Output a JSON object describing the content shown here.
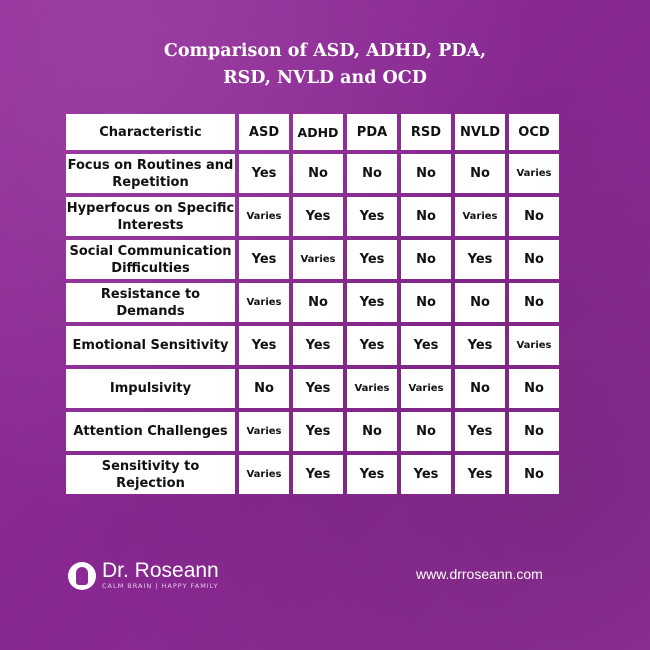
{
  "title_lines": [
    "Comparison of ASD, ADHD, PDA,",
    "RSD, NVLD and OCD"
  ],
  "table": {
    "corner": "Characteristic",
    "columns": [
      "ASD",
      "ADHD",
      "PDA",
      "RSD",
      "NVLD",
      "OCD"
    ],
    "rows": [
      {
        "label": "Focus on Routines and Repetition",
        "values": [
          "Yes",
          "No",
          "No",
          "No",
          "No",
          "Varies"
        ]
      },
      {
        "label": "Hyperfocus on Specific Interests",
        "values": [
          "Varies",
          "Yes",
          "Yes",
          "No",
          "Varies",
          "No"
        ]
      },
      {
        "label": "Social Communication Difficulties",
        "values": [
          "Yes",
          "Varies",
          "Yes",
          "No",
          "Yes",
          "No"
        ]
      },
      {
        "label": "Resistance to Demands",
        "values": [
          "Varies",
          "No",
          "Yes",
          "No",
          "No",
          "No"
        ]
      },
      {
        "label": "Emotional Sensitivity",
        "values": [
          "Yes",
          "Yes",
          "Yes",
          "Yes",
          "Yes",
          "Varies"
        ]
      },
      {
        "label": "Impulsivity",
        "values": [
          "No",
          "Yes",
          "Varies",
          "Varies",
          "No",
          "No"
        ]
      },
      {
        "label": "Attention Challenges",
        "values": [
          "Varies",
          "Yes",
          "No",
          "No",
          "Yes",
          "No"
        ]
      },
      {
        "label": "Sensitivity to Rejection",
        "values": [
          "Varies",
          "Yes",
          "Yes",
          "Yes",
          "Yes",
          "No"
        ]
      }
    ]
  },
  "footer": {
    "logo_name": "Dr. Roseann",
    "logo_tagline": "CALM BRAIN | HAPPY FAMILY",
    "website": "www.drroseann.com",
    "logo_icon": "head-silhouette-icon"
  },
  "colors": {
    "background": "#8e2a96",
    "header_text": "#1a1f6e",
    "cell_bg": "#ffffff"
  }
}
